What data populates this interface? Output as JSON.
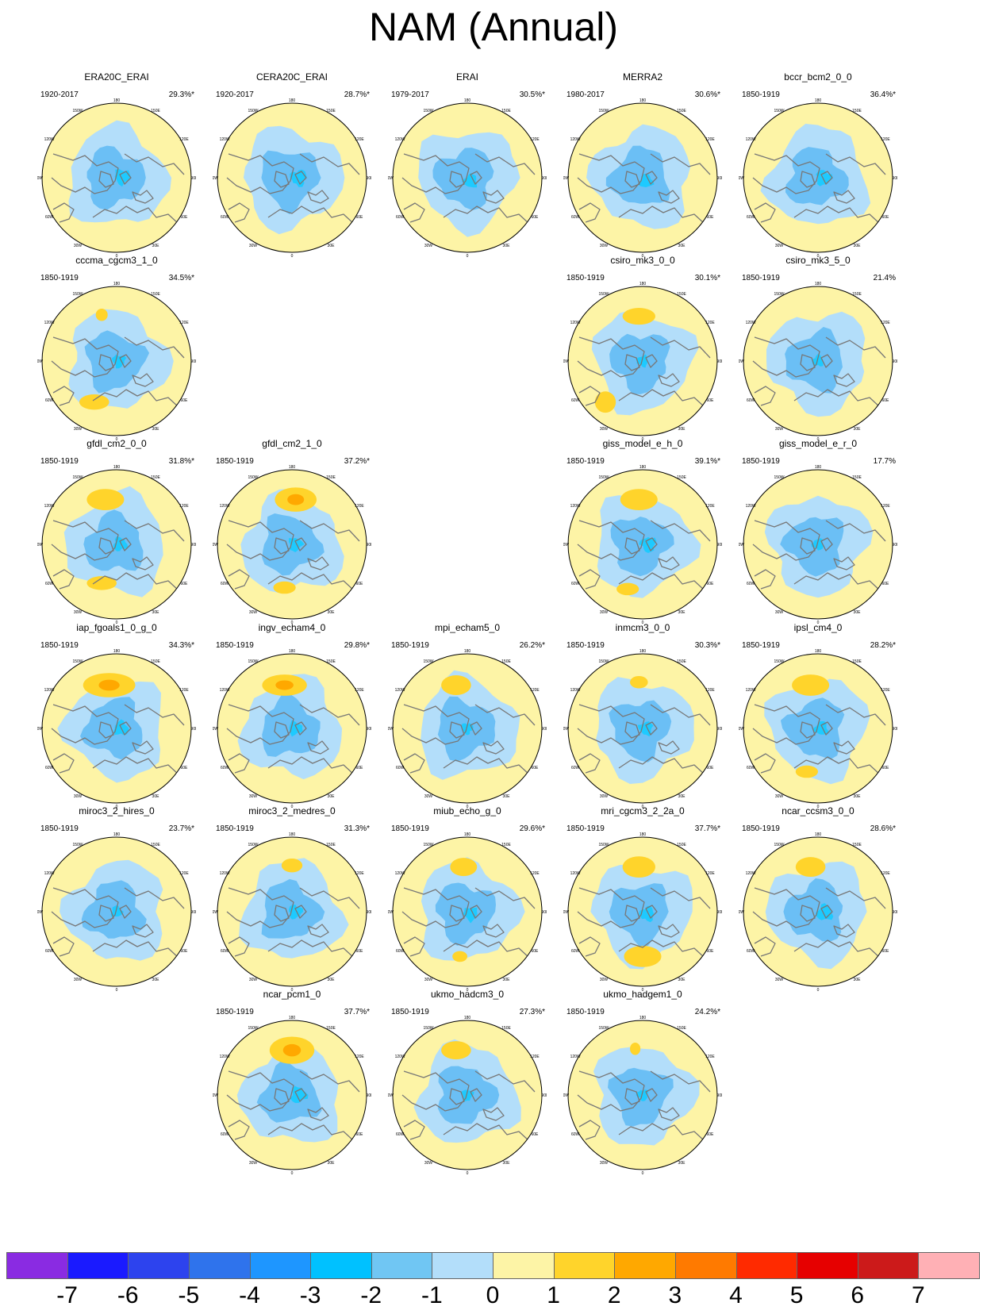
{
  "title": "NAM (Annual)",
  "colors": {
    "ocean_fill": "#fdf4a6",
    "coast": "#777777",
    "neg1": "#b3defa",
    "neg2": "#6bbff5",
    "neg3": "#1ecaff",
    "pos1": "#fdf4a6",
    "pos2": "#ffd42b",
    "pos3": "#ffa800"
  },
  "colorbar": {
    "colors": [
      "#8a2be2",
      "#1a1aff",
      "#2d43ee",
      "#2f73ec",
      "#1e96ff",
      "#00c1ff",
      "#70c6f3",
      "#b3defa",
      "#fdf4a6",
      "#ffd42b",
      "#ffa800",
      "#ff7a00",
      "#ff2a00",
      "#e60000",
      "#cc1a1a",
      "#ffb0b5"
    ],
    "labels": [
      "-7",
      "-6",
      "-5",
      "-4",
      "-3",
      "-2",
      "-1",
      "0",
      "1",
      "2",
      "3",
      "4",
      "5",
      "6",
      "7"
    ]
  },
  "lon_labels": [
    "180",
    "150E",
    "120E",
    "90E",
    "60E",
    "30E",
    "0",
    "30W",
    "60W",
    "90W",
    "120W",
    "150W"
  ],
  "panels": [
    {
      "row": 0,
      "col": 0,
      "name": "ERA20C_ERAI",
      "period": "1920-2017",
      "pct": "29.3%*",
      "pos": [],
      "core": [
        0.5,
        0.1
      ]
    },
    {
      "row": 0,
      "col": 1,
      "name": "CERA20C_ERAI",
      "period": "1920-2017",
      "pct": "28.7%*",
      "pos": [],
      "core": [
        0.6,
        0.0
      ]
    },
    {
      "row": 0,
      "col": 2,
      "name": "ERAI",
      "period": "1979-2017",
      "pct": "30.5%*",
      "pos": [],
      "core": [
        0.3,
        -0.3
      ]
    },
    {
      "row": 0,
      "col": 3,
      "name": "MERRA2",
      "period": "1980-2017",
      "pct": "30.6%*",
      "pos": [],
      "core": [
        0.3,
        -0.3
      ]
    },
    {
      "row": 0,
      "col": 4,
      "name": "bccr_bcm2_0_0",
      "period": "1850-1919",
      "pct": "36.4%*",
      "pos": [],
      "core": [
        0.5,
        0.0
      ]
    },
    {
      "row": 1,
      "col": 0,
      "name": "cccma_cgcm3_1_0",
      "period": "1850-1919",
      "pct": "34.5%*",
      "pos": [
        [
          -0.2,
          0.62,
          0.08,
          0.04
        ],
        [
          -0.3,
          -0.55,
          0.2,
          0.06
        ]
      ],
      "core": [
        0.2,
        0.0
      ]
    },
    {
      "row": 1,
      "col": 3,
      "name": "csiro_mk3_0_0",
      "period": "1850-1919",
      "pct": "30.1%*",
      "pos": [
        [
          -0.05,
          0.6,
          0.22,
          0.07
        ],
        [
          -0.5,
          -0.55,
          0.14,
          0.1
        ]
      ],
      "core": [
        0.0,
        0.0
      ]
    },
    {
      "row": 1,
      "col": 4,
      "name": "csiro_mk3_5_0",
      "period": "1850-1919",
      "pct": "21.4%",
      "pos": [],
      "core": [
        0.0,
        0.0
      ]
    },
    {
      "row": 2,
      "col": 0,
      "name": "gfdl_cm2_0_0",
      "period": "1850-1919",
      "pct": "31.8%*",
      "pos": [
        [
          -0.15,
          0.6,
          0.25,
          0.1
        ],
        [
          -0.2,
          -0.52,
          0.2,
          0.05
        ]
      ],
      "core": [
        0.3,
        0.0
      ]
    },
    {
      "row": 2,
      "col": 1,
      "name": "gfdl_cm2_1_0",
      "period": "1850-1919",
      "pct": "37.2%*",
      "pos": [
        [
          0.05,
          0.6,
          0.28,
          0.12
        ],
        [
          -0.1,
          -0.58,
          0.15,
          0.04
        ]
      ],
      "core": [
        0.3,
        0.0
      ]
    },
    {
      "row": 2,
      "col": 3,
      "name": "giss_model_e_h_0",
      "period": "1850-1919",
      "pct": "39.1%*",
      "pos": [
        [
          -0.05,
          0.6,
          0.25,
          0.1
        ],
        [
          -0.2,
          -0.6,
          0.15,
          0.04
        ]
      ],
      "core": [
        0.5,
        0.0
      ]
    },
    {
      "row": 2,
      "col": 4,
      "name": "giss_model_e_r_0",
      "period": "1850-1919",
      "pct": "17.7%",
      "pos": [],
      "core": [
        0.0,
        0.0
      ]
    },
    {
      "row": 3,
      "col": 0,
      "name": "iap_fgoals1_0_g_0",
      "period": "1850-1919",
      "pct": "34.3%*",
      "pos": [
        [
          -0.1,
          0.58,
          0.35,
          0.12
        ]
      ],
      "core": [
        0.4,
        0.0
      ]
    },
    {
      "row": 3,
      "col": 1,
      "name": "ingv_echam4_0",
      "period": "1850-1919",
      "pct": "29.8%*",
      "pos": [
        [
          -0.1,
          0.58,
          0.3,
          0.1
        ]
      ],
      "core": [
        0.3,
        0.0
      ]
    },
    {
      "row": 3,
      "col": 2,
      "name": "mpi_echam5_0",
      "period": "1850-1919",
      "pct": "26.2%*",
      "pos": [
        [
          -0.15,
          0.58,
          0.2,
          0.09
        ]
      ],
      "core": [
        0.0,
        0.0
      ]
    },
    {
      "row": 3,
      "col": 3,
      "name": "inmcm3_0_0",
      "period": "1850-1919",
      "pct": "30.3%*",
      "pos": [
        [
          -0.05,
          0.62,
          0.12,
          0.04
        ]
      ],
      "core": [
        0.3,
        0.0
      ]
    },
    {
      "row": 3,
      "col": 4,
      "name": "ipsl_cm4_0",
      "period": "1850-1919",
      "pct": "28.2%*",
      "pos": [
        [
          -0.1,
          0.58,
          0.25,
          0.1
        ],
        [
          -0.15,
          -0.58,
          0.15,
          0.04
        ]
      ],
      "core": [
        0.3,
        0.0
      ]
    },
    {
      "row": 4,
      "col": 0,
      "name": "miroc3_2_hires_0",
      "period": "1850-1919",
      "pct": "23.7%*",
      "pos": [],
      "core": [
        0.0,
        0.0
      ]
    },
    {
      "row": 4,
      "col": 1,
      "name": "miroc3_2_medres_0",
      "period": "1850-1919",
      "pct": "31.3%*",
      "pos": [
        [
          0.0,
          0.62,
          0.14,
          0.05
        ]
      ],
      "core": [
        0.3,
        0.0
      ]
    },
    {
      "row": 4,
      "col": 2,
      "name": "miub_echo_g_0",
      "period": "1850-1919",
      "pct": "29.6%*",
      "pos": [
        [
          -0.05,
          0.6,
          0.18,
          0.08
        ],
        [
          -0.1,
          -0.6,
          0.1,
          0.03
        ]
      ],
      "core": [
        0.3,
        -0.2
      ]
    },
    {
      "row": 4,
      "col": 3,
      "name": "mri_cgcm3_2_2a_0",
      "period": "1850-1919",
      "pct": "37.7%*",
      "pos": [
        [
          -0.05,
          0.6,
          0.22,
          0.1
        ],
        [
          0.0,
          -0.6,
          0.25,
          0.1
        ]
      ],
      "core": [
        0.4,
        -0.2
      ]
    },
    {
      "row": 4,
      "col": 4,
      "name": "ncar_ccsm3_0_0",
      "period": "1850-1919",
      "pct": "28.6%*",
      "pos": [
        [
          -0.1,
          0.6,
          0.2,
          0.09
        ]
      ],
      "core": [
        0.6,
        -0.1
      ]
    },
    {
      "row": 5,
      "col": 1,
      "name": "ncar_pcm1_0",
      "period": "1850-1919",
      "pct": "37.7%*",
      "pos": [
        [
          0.0,
          0.6,
          0.3,
          0.14
        ]
      ],
      "core": [
        0.6,
        0.0
      ]
    },
    {
      "row": 5,
      "col": 2,
      "name": "ukmo_hadcm3_0",
      "period": "1850-1919",
      "pct": "27.3%*",
      "pos": [
        [
          -0.15,
          0.6,
          0.2,
          0.08
        ]
      ],
      "core": [
        0.0,
        0.0
      ]
    },
    {
      "row": 5,
      "col": 3,
      "name": "ukmo_hadgem1_0",
      "period": "1850-1919",
      "pct": "24.2%*",
      "pos": [
        [
          -0.1,
          0.62,
          0.07,
          0.04
        ]
      ],
      "core": [
        0.0,
        0.0
      ]
    }
  ]
}
